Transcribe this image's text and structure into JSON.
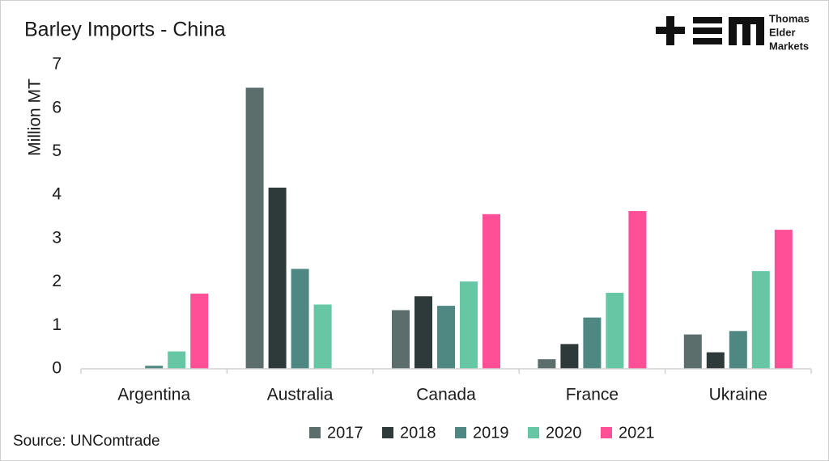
{
  "chart_data": {
    "type": "bar",
    "title": "Barley Imports - China",
    "y_label": "Million MT",
    "source": "Source: UNComtrade",
    "logo_text": [
      "Thomas",
      "Elder",
      "Markets"
    ],
    "categories": [
      "Argentina",
      "Australia",
      "Canada",
      "France",
      "Ukraine"
    ],
    "series": [
      {
        "name": "2017",
        "color": "#5b6e6b",
        "values": [
          0,
          6.47,
          1.35,
          0.22,
          0.79
        ]
      },
      {
        "name": "2018",
        "color": "#2e3a3a",
        "values": [
          0,
          4.17,
          1.67,
          0.57,
          0.38
        ]
      },
      {
        "name": "2019",
        "color": "#4f8782",
        "values": [
          0.07,
          2.3,
          1.45,
          1.18,
          0.87
        ]
      },
      {
        "name": "2020",
        "color": "#67c7a5",
        "values": [
          0.4,
          1.48,
          2.01,
          1.75,
          2.25
        ]
      },
      {
        "name": "2021",
        "color": "#ff4f97",
        "values": [
          1.73,
          0,
          3.56,
          3.63,
          3.2
        ]
      }
    ],
    "ylim": [
      0,
      7
    ],
    "yticks": [
      0,
      1,
      2,
      3,
      4,
      5,
      6,
      7
    ],
    "grid": false,
    "legend": "bottom"
  }
}
